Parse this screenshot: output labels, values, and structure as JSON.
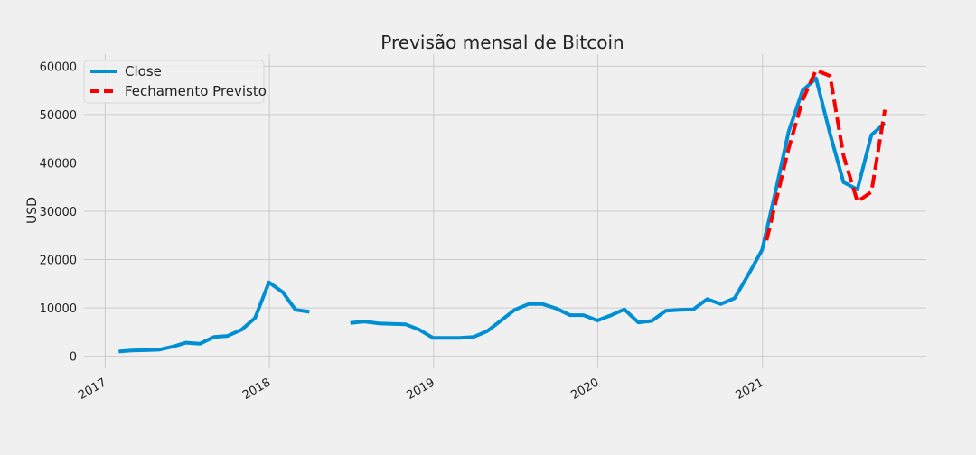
{
  "chart_data": {
    "type": "line",
    "title": "Previsão mensal de Bitcoin",
    "xlabel": "",
    "ylabel": "USD",
    "xlim": [
      "2016-11-15",
      "2021-12-31"
    ],
    "ylim": [
      -2500,
      62500
    ],
    "x_ticks": [
      "2017-01-01",
      "2018-01-01",
      "2019-01-01",
      "2020-01-01",
      "2021-01-01"
    ],
    "x_tick_labels": [
      "2017",
      "2018",
      "2019",
      "2020",
      "2021"
    ],
    "y_ticks": [
      0,
      10000,
      20000,
      30000,
      40000,
      50000,
      60000
    ],
    "y_tick_labels": [
      "0",
      "10000",
      "20000",
      "30000",
      "40000",
      "50000",
      "60000"
    ],
    "grid": true,
    "legend_position": "top-left",
    "series": [
      {
        "name": "Close",
        "color": "#008fd5",
        "style": "solid",
        "points": [
          {
            "x": "2017-01-31",
            "y": 970
          },
          {
            "x": "2017-02-28",
            "y": 1190
          },
          {
            "x": "2017-03-31",
            "y": 1250
          },
          {
            "x": "2017-04-30",
            "y": 1350
          },
          {
            "x": "2017-05-31",
            "y": 2000
          },
          {
            "x": "2017-06-30",
            "y": 2800
          },
          {
            "x": "2017-07-31",
            "y": 2600
          },
          {
            "x": "2017-08-31",
            "y": 4000
          },
          {
            "x": "2017-09-30",
            "y": 4200
          },
          {
            "x": "2017-10-31",
            "y": 5500
          },
          {
            "x": "2017-11-30",
            "y": 7900
          },
          {
            "x": "2017-12-31",
            "y": 15300
          },
          {
            "x": "2018-01-31",
            "y": 13200
          },
          {
            "x": "2018-02-28",
            "y": 9600
          },
          {
            "x": "2018-03-31",
            "y": 9200
          },
          {
            "x": "2018-04-30",
            "y": null
          },
          {
            "x": "2018-05-31",
            "y": null
          },
          {
            "x": "2018-06-30",
            "y": 6900
          },
          {
            "x": "2018-07-31",
            "y": 7200
          },
          {
            "x": "2018-08-31",
            "y": 6800
          },
          {
            "x": "2018-09-30",
            "y": 6700
          },
          {
            "x": "2018-10-31",
            "y": 6600
          },
          {
            "x": "2018-11-30",
            "y": 5500
          },
          {
            "x": "2018-12-31",
            "y": 3800
          },
          {
            "x": "2019-01-31",
            "y": 3800
          },
          {
            "x": "2019-02-28",
            "y": 3800
          },
          {
            "x": "2019-03-31",
            "y": 4000
          },
          {
            "x": "2019-04-30",
            "y": 5200
          },
          {
            "x": "2019-05-31",
            "y": 7400
          },
          {
            "x": "2019-06-30",
            "y": 9600
          },
          {
            "x": "2019-07-31",
            "y": 10800
          },
          {
            "x": "2019-08-31",
            "y": 10800
          },
          {
            "x": "2019-09-30",
            "y": 9900
          },
          {
            "x": "2019-10-31",
            "y": 8500
          },
          {
            "x": "2019-11-30",
            "y": 8500
          },
          {
            "x": "2019-12-31",
            "y": 7400
          },
          {
            "x": "2020-01-31",
            "y": 8500
          },
          {
            "x": "2020-02-29",
            "y": 9700
          },
          {
            "x": "2020-03-31",
            "y": 7000
          },
          {
            "x": "2020-04-30",
            "y": 7300
          },
          {
            "x": "2020-05-31",
            "y": 9400
          },
          {
            "x": "2020-06-30",
            "y": 9600
          },
          {
            "x": "2020-07-31",
            "y": 9700
          },
          {
            "x": "2020-08-31",
            "y": 11800
          },
          {
            "x": "2020-09-30",
            "y": 10800
          },
          {
            "x": "2020-10-31",
            "y": 12000
          },
          {
            "x": "2020-11-30",
            "y": 16800
          },
          {
            "x": "2020-12-31",
            "y": 22000
          },
          {
            "x": "2021-01-31",
            "y": 34500
          },
          {
            "x": "2021-02-28",
            "y": 46500
          },
          {
            "x": "2021-03-31",
            "y": 55000
          },
          {
            "x": "2021-04-30",
            "y": 57500
          },
          {
            "x": "2021-05-31",
            "y": 46000
          },
          {
            "x": "2021-06-30",
            "y": 36000
          },
          {
            "x": "2021-07-31",
            "y": 34500
          },
          {
            "x": "2021-08-31",
            "y": 45800
          },
          {
            "x": "2021-09-30",
            "y": 48200
          }
        ]
      },
      {
        "name": "Fechamento Previsto",
        "color": "#fc0000",
        "style": "dashed",
        "points": [
          {
            "x": "2021-01-10",
            "y": 24000
          },
          {
            "x": "2021-02-28",
            "y": 43000
          },
          {
            "x": "2021-03-31",
            "y": 53000
          },
          {
            "x": "2021-04-30",
            "y": 59200
          },
          {
            "x": "2021-05-31",
            "y": 58000
          },
          {
            "x": "2021-06-30",
            "y": 41500
          },
          {
            "x": "2021-07-31",
            "y": 32000
          },
          {
            "x": "2021-08-31",
            "y": 34000
          },
          {
            "x": "2021-09-30",
            "y": 51000
          }
        ]
      }
    ]
  }
}
